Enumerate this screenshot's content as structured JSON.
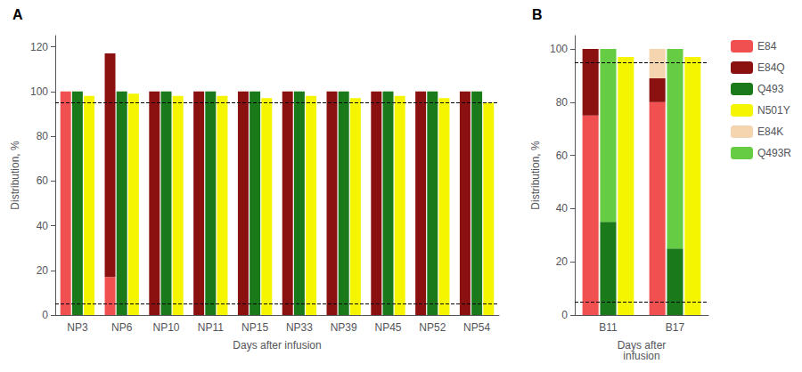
{
  "chart_data": [
    {
      "type": "bar",
      "annotations": [
        "A"
      ],
      "xlabel": "Days after infusion",
      "ylabel": "Distribution, %",
      "categories": [
        "NP3",
        "NP6",
        "NP10",
        "NP11",
        "NP15",
        "NP33",
        "NP39",
        "NP45",
        "NP52",
        "NP54"
      ],
      "series": [
        {
          "name": "E84",
          "color": "#F05050",
          "values": [
            100,
            17,
            0,
            0,
            0,
            0,
            0,
            0,
            0,
            0
          ]
        },
        {
          "name": "E84Q",
          "color": "#8B1010",
          "values": [
            0,
            100,
            100,
            100,
            100,
            100,
            100,
            100,
            100,
            100
          ],
          "stacked": true
        },
        {
          "name": "Q493",
          "color": "#1A7A1A",
          "values": [
            100,
            100,
            100,
            100,
            100,
            100,
            100,
            100,
            100,
            100
          ]
        },
        {
          "name": "N501Y",
          "color": "#F5F500",
          "values": [
            98,
            99,
            98,
            98,
            97,
            98,
            97,
            98,
            97,
            95
          ]
        }
      ],
      "hlines": [
        95,
        5
      ],
      "ylim": [
        0,
        125
      ],
      "yticks": [
        0,
        20,
        40,
        60,
        80,
        100,
        120
      ],
      "grid": false
    },
    {
      "type": "bar",
      "annotations": [
        "B"
      ],
      "xlabel": "Days after\ninfusion",
      "ylabel": "Distribution, %",
      "categories": [
        "B11",
        "B17"
      ],
      "series": [
        {
          "name": "E84",
          "color": "#F05050",
          "values": [
            75,
            80
          ]
        },
        {
          "name": "E84Q",
          "color": "#8B1010",
          "values": [
            25,
            9
          ],
          "stacked": true
        },
        {
          "name": "E84K",
          "color": "#F5D5B0",
          "values": [
            0,
            11
          ],
          "stacked": true
        },
        {
          "name": "Q493",
          "color": "#1A7A1A",
          "values": [
            35,
            25
          ]
        },
        {
          "name": "Q493R",
          "color": "#66CC44",
          "values": [
            65,
            75
          ],
          "stacked": true
        },
        {
          "name": "N501Y",
          "color": "#F5F500",
          "values": [
            97,
            97
          ]
        }
      ],
      "hlines": [
        95,
        5
      ],
      "ylim": [
        0,
        105
      ],
      "yticks": [
        0,
        20,
        40,
        60,
        80,
        100
      ],
      "grid": false,
      "legend": "right"
    }
  ]
}
